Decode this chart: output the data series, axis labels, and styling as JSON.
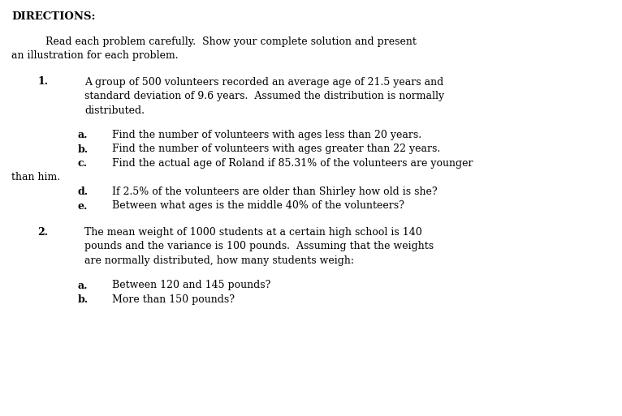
{
  "bg_color": "#ffffff",
  "title": "DIRECTIONS:",
  "intro_line1": "Read each problem carefully.  Show your complete solution and present",
  "intro_line2": "an illustration for each problem.",
  "problem1_num": "1.",
  "problem1_lines": [
    "A group of 500 volunteers recorded an average age of 21.5 years and",
    "standard deviation of 9.6 years.  Assumed the distribution is normally",
    "distributed."
  ],
  "problem1_subs": [
    {
      "label": "a.",
      "lines": [
        "Find the number of volunteers with ages less than 20 years."
      ]
    },
    {
      "label": "b.",
      "lines": [
        "Find the number of volunteers with ages greater than 22 years."
      ]
    },
    {
      "label": "c.",
      "lines": [
        "Find the actual age of Roland if 85.31% of the volunteers are younger",
        "than him."
      ]
    },
    {
      "label": "d.",
      "lines": [
        "If 2.5% of the volunteers are older than Shirley how old is she?"
      ]
    },
    {
      "label": "e.",
      "lines": [
        "Between what ages is the middle 40% of the volunteers?"
      ]
    }
  ],
  "problem2_num": "2.",
  "problem2_lines": [
    "The mean weight of 1000 students at a certain high school is 140",
    "pounds and the variance is 100 pounds.  Assuming that the weights",
    "are normally distributed, how many students weigh:"
  ],
  "problem2_subs": [
    {
      "label": "a.",
      "lines": [
        "Between 120 and 145 pounds?"
      ]
    },
    {
      "label": "b.",
      "lines": [
        "More than 150 pounds?"
      ]
    }
  ],
  "font_family": "DejaVu Serif",
  "title_fontsize": 9.5,
  "body_fontsize": 9.0,
  "text_color": "#000000",
  "fig_width": 7.66,
  "fig_height": 5.13,
  "dpi": 100
}
